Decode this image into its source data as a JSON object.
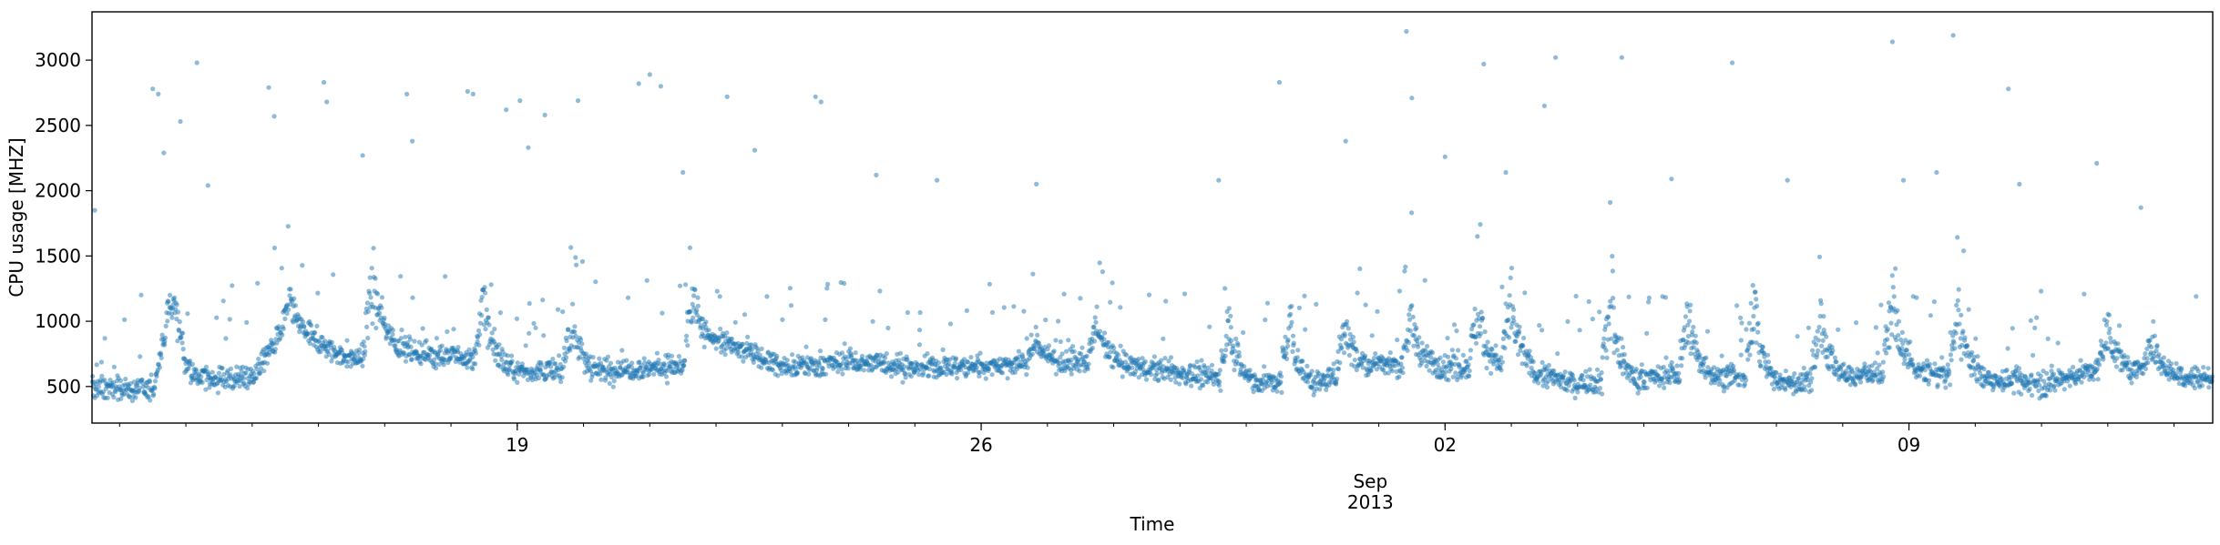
{
  "chart_data": {
    "type": "scatter",
    "xlabel": "Time",
    "ylabel": "CPU usage [MHZ]",
    "x_range": [
      "2013-08-12T14:00",
      "2013-09-13T14:00"
    ],
    "ylim": [
      220,
      3370
    ],
    "grid": false,
    "point_color": "#1f77b4",
    "x_major_ticks": [
      {
        "date": "2013-08-19",
        "label": "19"
      },
      {
        "date": "2013-08-26",
        "label": "26"
      },
      {
        "date": "2013-09-02",
        "label": "02",
        "sublabel": "Sep",
        "sublabel2": "2013"
      },
      {
        "date": "2013-09-09",
        "label": "09"
      }
    ],
    "y_ticks": [
      500,
      1000,
      1500,
      2000,
      2500,
      3000
    ],
    "series": [
      {
        "baseline": [
          [
            "2013-08-12T14:00",
            490
          ],
          [
            "2013-08-13T12:00",
            470
          ],
          [
            "2013-08-13T18:00",
            1050
          ],
          [
            "2013-08-14T00:00",
            560
          ],
          [
            "2013-08-15T00:00",
            570
          ],
          [
            "2013-08-15T12:00",
            960
          ],
          [
            "2013-08-16T12:00",
            700
          ],
          [
            "2013-08-17T00:00",
            850
          ],
          [
            "2013-08-17T12:00",
            760
          ],
          [
            "2013-08-18T12:00",
            700
          ],
          [
            "2013-08-19T00:00",
            620
          ],
          [
            "2013-08-20T00:00",
            620
          ],
          [
            "2013-08-21T12:00",
            660
          ],
          [
            "2013-08-22T00:00",
            860
          ],
          [
            "2013-08-23T00:00",
            650
          ],
          [
            "2013-08-24T00:00",
            690
          ],
          [
            "2013-08-25T00:00",
            640
          ],
          [
            "2013-08-26T00:00",
            660
          ],
          [
            "2013-08-27T00:00",
            690
          ],
          [
            "2013-08-28T00:00",
            680
          ],
          [
            "2013-08-29T00:00",
            600
          ],
          [
            "2013-08-30T00:00",
            540
          ],
          [
            "2013-08-31T00:00",
            520
          ],
          [
            "2013-09-01T00:00",
            680
          ],
          [
            "2013-09-02T00:00",
            650
          ],
          [
            "2013-09-03T00:00",
            650
          ],
          [
            "2013-09-04T00:00",
            520
          ],
          [
            "2013-09-05T00:00",
            570
          ],
          [
            "2013-09-06T00:00",
            600
          ],
          [
            "2013-09-07T00:00",
            520
          ],
          [
            "2013-09-08T00:00",
            580
          ],
          [
            "2013-09-09T00:00",
            620
          ],
          [
            "2013-09-10T00:00",
            570
          ],
          [
            "2013-09-11T00:00",
            520
          ],
          [
            "2013-09-12T00:00",
            650
          ],
          [
            "2013-09-13T14:00",
            560
          ]
        ],
        "spikes": [
          [
            "2013-08-13T20:00",
            1200
          ],
          [
            "2013-08-15T14:00",
            1200
          ],
          [
            "2013-08-16T20:00",
            1450
          ],
          [
            "2013-08-18T12:00",
            1300
          ],
          [
            "2013-08-19T20:00",
            1150
          ],
          [
            "2013-08-21T16:00",
            1350
          ],
          [
            "2013-08-22T12:00",
            800
          ],
          [
            "2013-08-24T12:00",
            700
          ],
          [
            "2013-08-26T20:00",
            900
          ],
          [
            "2013-08-27T18:00",
            1100
          ],
          [
            "2013-08-29T18:00",
            1100
          ],
          [
            "2013-08-30T16:00",
            1100
          ],
          [
            "2013-08-31T12:00",
            1150
          ],
          [
            "2013-09-01T12:00",
            1150
          ],
          [
            "2013-09-02T12:00",
            1200
          ],
          [
            "2013-09-03T00:00",
            1350
          ],
          [
            "2013-09-04T12:00",
            1300
          ],
          [
            "2013-09-05T16:00",
            1200
          ],
          [
            "2013-09-06T16:00",
            1300
          ],
          [
            "2013-09-07T16:00",
            1200
          ],
          [
            "2013-09-08T18:00",
            1300
          ],
          [
            "2013-09-09T18:00",
            1250
          ],
          [
            "2013-09-12T00:00",
            1050
          ],
          [
            "2013-09-12T16:00",
            900
          ]
        ],
        "outliers": [
          [
            "2013-08-12T15:00",
            1850
          ],
          [
            "2013-08-13T12:00",
            2780
          ],
          [
            "2013-08-13T14:00",
            2740
          ],
          [
            "2013-08-13T16:00",
            2290
          ],
          [
            "2013-08-13T22:00",
            2530
          ],
          [
            "2013-08-14T04:00",
            2980
          ],
          [
            "2013-08-14T08:00",
            2040
          ],
          [
            "2013-08-15T06:00",
            2790
          ],
          [
            "2013-08-15T08:00",
            2570
          ],
          [
            "2013-08-16T02:00",
            2830
          ],
          [
            "2013-08-16T03:00",
            2680
          ],
          [
            "2013-08-16T16:00",
            2270
          ],
          [
            "2013-08-17T08:00",
            2740
          ],
          [
            "2013-08-17T10:00",
            2380
          ],
          [
            "2013-08-18T06:00",
            2760
          ],
          [
            "2013-08-18T08:00",
            2740
          ],
          [
            "2013-08-18T20:00",
            2620
          ],
          [
            "2013-08-19T01:00",
            2690
          ],
          [
            "2013-08-19T04:00",
            2330
          ],
          [
            "2013-08-19T10:00",
            2580
          ],
          [
            "2013-08-19T22:00",
            2690
          ],
          [
            "2013-08-20T20:00",
            2820
          ],
          [
            "2013-08-21T00:00",
            2890
          ],
          [
            "2013-08-21T04:00",
            2800
          ],
          [
            "2013-08-21T12:00",
            2140
          ],
          [
            "2013-08-22T04:00",
            2720
          ],
          [
            "2013-08-22T14:00",
            2310
          ],
          [
            "2013-08-23T12:00",
            2720
          ],
          [
            "2013-08-23T14:00",
            2680
          ],
          [
            "2013-08-24T10:00",
            2120
          ],
          [
            "2013-08-25T08:00",
            2080
          ],
          [
            "2013-08-26T20:00",
            2050
          ],
          [
            "2013-08-29T14:00",
            2080
          ],
          [
            "2013-08-30T12:00",
            2830
          ],
          [
            "2013-08-31T12:00",
            2380
          ],
          [
            "2013-09-01T10:00",
            3220
          ],
          [
            "2013-09-01T12:00",
            2710
          ],
          [
            "2013-09-02T00:00",
            2260
          ],
          [
            "2013-09-02T14:00",
            2970
          ],
          [
            "2013-09-02T22:00",
            2140
          ],
          [
            "2013-09-03T12:00",
            2650
          ],
          [
            "2013-09-03T16:00",
            3020
          ],
          [
            "2013-09-04T16:00",
            3020
          ],
          [
            "2013-09-05T10:00",
            2090
          ],
          [
            "2013-09-06T08:00",
            2980
          ],
          [
            "2013-09-07T04:00",
            2080
          ],
          [
            "2013-09-08T18:00",
            3140
          ],
          [
            "2013-09-08T22:00",
            2080
          ],
          [
            "2013-09-09T10:00",
            2140
          ],
          [
            "2013-09-09T16:00",
            3190
          ],
          [
            "2013-09-10T12:00",
            2780
          ],
          [
            "2013-09-10T16:00",
            2050
          ],
          [
            "2013-09-11T20:00",
            2210
          ],
          [
            "2013-09-12T12:00",
            1870
          ],
          [
            "2013-09-13T08:00",
            1190
          ]
        ]
      }
    ]
  }
}
